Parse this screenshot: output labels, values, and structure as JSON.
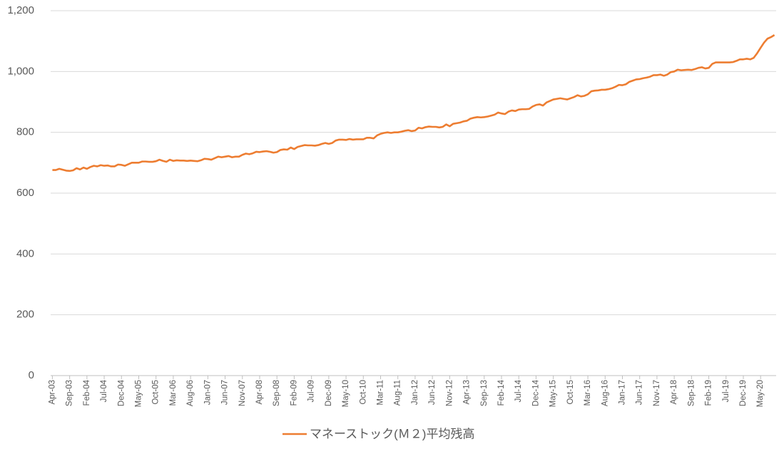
{
  "chart_data": {
    "type": "line",
    "categories": [
      "Apr-03",
      null,
      null,
      null,
      null,
      "Sep-03",
      null,
      null,
      null,
      null,
      "Feb-04",
      null,
      null,
      null,
      null,
      "Jul-04",
      null,
      null,
      null,
      null,
      "Dec-04",
      null,
      null,
      null,
      null,
      "May-05",
      null,
      null,
      null,
      null,
      "Oct-05",
      null,
      null,
      null,
      null,
      "Mar-06",
      null,
      null,
      null,
      null,
      "Aug-06",
      null,
      null,
      null,
      null,
      "Jan-07",
      null,
      null,
      null,
      null,
      "Jun-07",
      null,
      null,
      null,
      null,
      "Nov-07",
      null,
      null,
      null,
      null,
      "Apr-08",
      null,
      null,
      null,
      null,
      "Sep-08",
      null,
      null,
      null,
      null,
      "Feb-09",
      null,
      null,
      null,
      null,
      "Jul-09",
      null,
      null,
      null,
      null,
      "Dec-09",
      null,
      null,
      null,
      null,
      "May-10",
      null,
      null,
      null,
      null,
      "Oct-10",
      null,
      null,
      null,
      null,
      "Mar-11",
      null,
      null,
      null,
      null,
      "Aug-11",
      null,
      null,
      null,
      null,
      "Jan-12",
      null,
      null,
      null,
      null,
      "Jun-12",
      null,
      null,
      null,
      null,
      "Nov-12",
      null,
      null,
      null,
      null,
      "Apr-13",
      null,
      null,
      null,
      null,
      "Sep-13",
      null,
      null,
      null,
      null,
      "Feb-14",
      null,
      null,
      null,
      null,
      "Jul-14",
      null,
      null,
      null,
      null,
      "Dec-14",
      null,
      null,
      null,
      null,
      "May-15",
      null,
      null,
      null,
      null,
      "Oct-15",
      null,
      null,
      null,
      null,
      "Mar-16",
      null,
      null,
      null,
      null,
      "Aug-16",
      null,
      null,
      null,
      null,
      "Jan-17",
      null,
      null,
      null,
      null,
      "Jun-17",
      null,
      null,
      null,
      null,
      "Nov-17",
      null,
      null,
      null,
      null,
      "Apr-18",
      null,
      null,
      null,
      null,
      "Sep-18",
      null,
      null,
      null,
      null,
      "Feb-19",
      null,
      null,
      null,
      null,
      "Jul-19",
      null,
      null,
      null,
      null,
      "Dec-19",
      null,
      null,
      null,
      null,
      "May-20",
      null,
      null,
      null,
      null
    ],
    "series": [
      {
        "name": "マネーストック(Ｍ２)平均残高",
        "color": "#ed7d31",
        "values": [
          676,
          676,
          680,
          677,
          674,
          673,
          675,
          682,
          678,
          684,
          680,
          686,
          690,
          688,
          692,
          690,
          691,
          688,
          688,
          694,
          693,
          690,
          695,
          700,
          700,
          700,
          704,
          704,
          703,
          703,
          705,
          710,
          706,
          703,
          710,
          706,
          708,
          707,
          707,
          706,
          707,
          706,
          705,
          708,
          713,
          712,
          710,
          715,
          720,
          718,
          720,
          722,
          718,
          720,
          720,
          726,
          730,
          728,
          731,
          736,
          735,
          737,
          738,
          736,
          733,
          735,
          742,
          744,
          743,
          750,
          745,
          752,
          755,
          758,
          757,
          757,
          756,
          758,
          762,
          765,
          762,
          765,
          773,
          776,
          776,
          775,
          778,
          776,
          777,
          777,
          777,
          782,
          782,
          780,
          790,
          795,
          798,
          800,
          798,
          800,
          800,
          802,
          805,
          807,
          804,
          806,
          815,
          813,
          817,
          819,
          818,
          818,
          816,
          818,
          826,
          820,
          828,
          830,
          832,
          836,
          838,
          845,
          848,
          850,
          849,
          850,
          852,
          855,
          858,
          865,
          862,
          860,
          868,
          872,
          870,
          875,
          876,
          876,
          877,
          885,
          890,
          892,
          888,
          898,
          903,
          908,
          910,
          912,
          910,
          908,
          912,
          916,
          922,
          918,
          920,
          925,
          935,
          937,
          938,
          940,
          940,
          942,
          945,
          950,
          956,
          955,
          958,
          966,
          970,
          974,
          975,
          978,
          980,
          983,
          988,
          988,
          990,
          986,
          990,
          998,
          1000,
          1006,
          1004,
          1005,
          1006,
          1005,
          1008,
          1012,
          1014,
          1010,
          1012,
          1025,
          1030,
          1030,
          1030,
          1030,
          1030,
          1031,
          1035,
          1040,
          1040,
          1042,
          1040,
          1045,
          1060,
          1078,
          1095,
          1108,
          1113,
          1120
        ]
      }
    ],
    "ylim": [
      0,
      1200
    ],
    "yticks": [
      0,
      200,
      400,
      600,
      800,
      {
        "value": 1000,
        "label": "1,000"
      },
      {
        "value": 1200,
        "label": "1,200"
      }
    ],
    "grid": true,
    "legend": "bottom"
  }
}
